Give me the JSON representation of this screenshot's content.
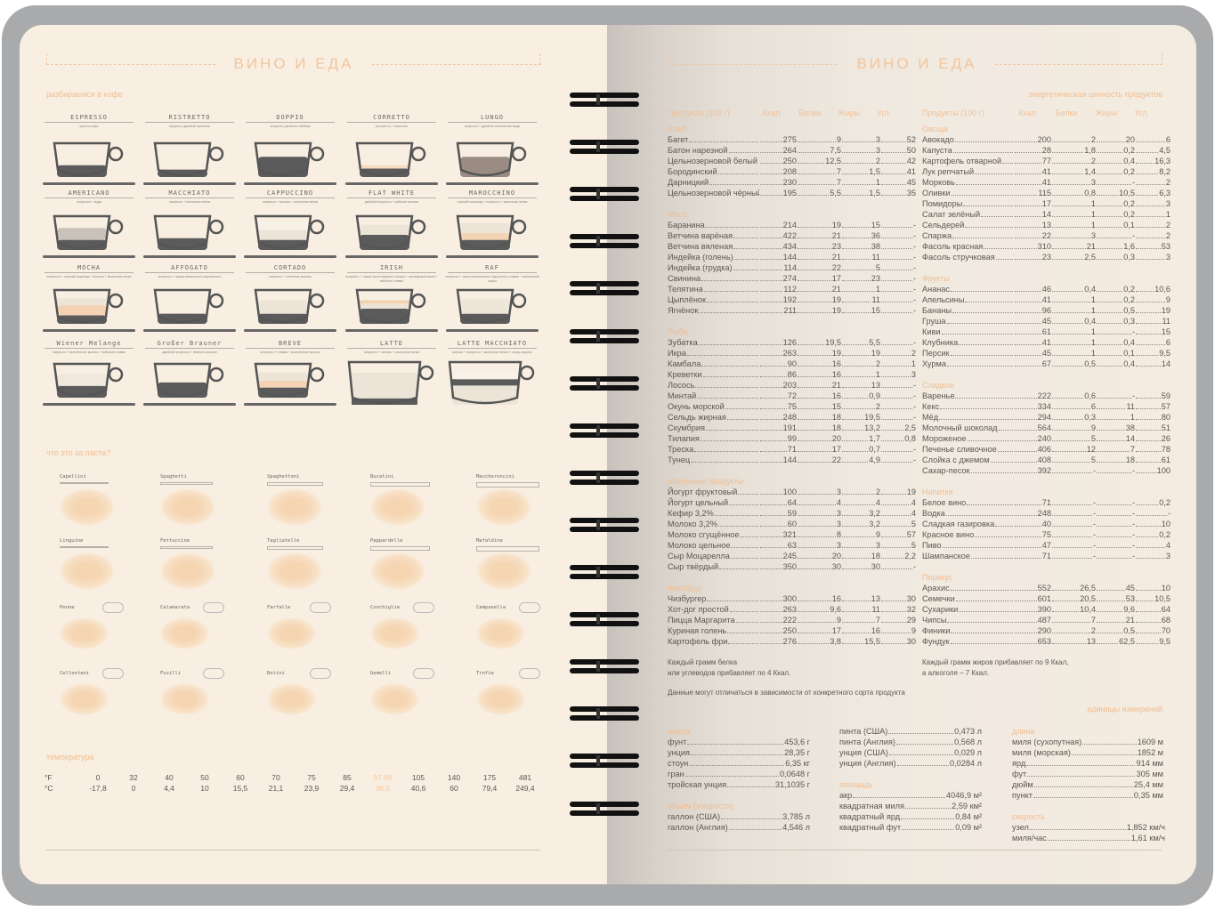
{
  "header": {
    "left_title": "ВИНО И ЕДА",
    "right_title": "ВИНО И ЕДА"
  },
  "coffee": {
    "title": "разбираемся в кофе",
    "cups": [
      {
        "name": "ESPRESSO",
        "desc": "просто кофе",
        "layers": [
          [
            "#5b5b5b",
            0.35
          ]
        ]
      },
      {
        "name": "RISTRETTO",
        "desc": "эспрессо двойной крепости",
        "layers": [
          [
            "#5b5b5b",
            0.22
          ]
        ]
      },
      {
        "name": "DOPPIO",
        "desc": "эспрессо двойного объёма",
        "layers": [
          [
            "#5b5b5b",
            0.6
          ]
        ]
      },
      {
        "name": "CORRETTO",
        "desc": "ристретто + алкоголь",
        "layers": [
          [
            "#5b5b5b",
            0.25
          ],
          [
            "#f5dcc0",
            0.1
          ]
        ]
      },
      {
        "name": "LUNGO",
        "desc": "эспрессо + двойное количество воды",
        "layers": [
          [
            "#9a8c82",
            0.6
          ]
        ]
      },
      {
        "name": "AMERICANO",
        "desc": "эспрессо + вода",
        "layers": [
          [
            "#5b5b5b",
            0.3
          ],
          [
            "#c9c2ba",
            0.35
          ]
        ]
      },
      {
        "name": "MACCHIATO",
        "desc": "эспрессо + молочная пенка",
        "layers": [
          [
            "#5b5b5b",
            0.35
          ]
        ]
      },
      {
        "name": "CAPPUCCINO",
        "desc": "эспрессо + молоко + молочная пенка",
        "layers": [
          [
            "#5b5b5b",
            0.3
          ],
          [
            "#ede4d8",
            0.3
          ],
          [
            "#f8f1e7",
            0.25
          ]
        ]
      },
      {
        "name": "FLAT WHITE",
        "desc": "двойной эспрессо + взбитое молоко",
        "layers": [
          [
            "#5b5b5b",
            0.45
          ],
          [
            "#ede4d8",
            0.3
          ]
        ]
      },
      {
        "name": "MAROCCHINO",
        "desc": "горячий шоколад + эспрессо + молочная пенка",
        "layers": [
          [
            "#5b5b5b",
            0.3
          ],
          [
            "#f3d3b3",
            0.2
          ],
          [
            "#ede4d8",
            0.3
          ]
        ]
      },
      {
        "name": "MOCHA",
        "desc": "эспрессо + горячий шоколад + молоко + молочная пенка",
        "layers": [
          [
            "#5b5b5b",
            0.25
          ],
          [
            "#f3d3b3",
            0.3
          ],
          [
            "#ede4d8",
            0.2
          ]
        ]
      },
      {
        "name": "AFFOGATO",
        "desc": "эспрессо + шарик ванильного мороженого",
        "layers": [
          [
            "#5b5b5b",
            0.3
          ]
        ]
      },
      {
        "name": "CORTADO",
        "desc": "эспрессо + топлёное молоко",
        "layers": [
          [
            "#5b5b5b",
            0.3
          ],
          [
            "#ede4d8",
            0.4
          ]
        ]
      },
      {
        "name": "IRISH",
        "desc": "эспрессо + ложка тростникового сахара + ирландский виски + взбитые сливки",
        "layers": [
          [
            "#5b5b5b",
            0.45
          ],
          [
            "#ede4d8",
            0.15
          ],
          [
            "#f3d3b3",
            0.1
          ]
        ]
      },
      {
        "name": "RAF",
        "desc": "эспрессо + смесь вспененных подогретых сливок + ванильный сироп",
        "layers": [
          [
            "#5b5b5b",
            0.3
          ],
          [
            "#efe6da",
            0.45
          ]
        ]
      },
      {
        "name": "Wiener Melange",
        "desc": "эспрессо + вспененное молоко + взбитые сливки",
        "layers": [
          [
            "#5b5b5b",
            0.35
          ],
          [
            "#f0e8dd",
            0.35
          ]
        ]
      },
      {
        "name": "Großer Brauner",
        "desc": "двойной эспрессо + немного молока",
        "layers": [
          [
            "#5b5b5b",
            0.45
          ]
        ]
      },
      {
        "name": "BREVE",
        "desc": "эспрессо + сливки + вспененное молоко",
        "layers": [
          [
            "#5b5b5b",
            0.3
          ],
          [
            "#f3d3b3",
            0.2
          ],
          [
            "#ede4d8",
            0.25
          ]
        ]
      },
      {
        "name": "LATTE",
        "desc": "эспрессо + молоко + молочная пенка",
        "layers": [
          [
            "#5b5b5b",
            0.15
          ],
          [
            "#ede4d8",
            0.6
          ]
        ]
      },
      {
        "name": "LATTE MACCHIATO",
        "desc": "молоко + эспрессо + молочная пенка + сахар-сиропы",
        "layers": [
          [
            "#ede4d8",
            0.45
          ],
          [
            "#5b5b5b",
            0.15
          ],
          [
            "#f8f1e7",
            0.2
          ]
        ]
      }
    ]
  },
  "pasta": {
    "title": "что это за паста?",
    "items": [
      "Capellini",
      "Spaghetti",
      "Spaghettoni",
      "Bucatini",
      "Maccheroncini",
      "Linguine",
      "Fettuccine",
      "Tagliatelle",
      "Pappardelle",
      "Mafaldine",
      "Penne",
      "Calamarata",
      "Farfalle",
      "Conchiglie",
      "Campanella",
      "Cellentani",
      "Fusilli",
      "Rotini",
      "Gemelli",
      "Trofie"
    ]
  },
  "temperature": {
    "title": "температура",
    "f_label": "°F",
    "c_label": "°C",
    "f": [
      "0",
      "32",
      "40",
      "50",
      "60",
      "70",
      "75",
      "85",
      "97,88",
      "105",
      "140",
      "175",
      "481"
    ],
    "c": [
      "-17,8",
      "0",
      "4,4",
      "10",
      "15,5",
      "21,1",
      "23,9",
      "29,4",
      "36,6",
      "40,6",
      "60",
      "79,4",
      "249,4"
    ],
    "highlight_index": 8,
    "highlight_color": "#f5c9a0"
  },
  "energy": {
    "title": "энергетическая ценность продуктов",
    "columns": [
      "Продукты (100 г)",
      "Ккал",
      "Белки",
      "Жиры",
      "Угл."
    ],
    "left": [
      {
        "name": "Хлеб",
        "rows": [
          [
            "Багет",
            "275",
            "9",
            "3",
            "52"
          ],
          [
            "Батон нарезной",
            "264",
            "7,5",
            "3",
            "50"
          ],
          [
            "Цельнозерновой белый",
            "250",
            "12,5",
            "2",
            "42"
          ],
          [
            "Бородинский",
            "208",
            "7",
            "1,5",
            "41"
          ],
          [
            "Дарницкий",
            "230",
            "7",
            "1",
            "45"
          ],
          [
            "Цельнозерновой чёрный",
            "195",
            "5,5",
            "1,5",
            "35"
          ]
        ]
      },
      {
        "name": "Мясо",
        "rows": [
          [
            "Баранина",
            "214",
            "19",
            "15",
            "-"
          ],
          [
            "Ветчина варёная",
            "422",
            "21",
            "36",
            "-"
          ],
          [
            "Ветчина вяленая",
            "434",
            "23",
            "38",
            "-"
          ],
          [
            "Индейка (голень)",
            "144",
            "21",
            "11",
            "-"
          ],
          [
            "Индейка (грудка)",
            "114",
            "22",
            "5",
            "-"
          ],
          [
            "Свинина",
            "274",
            "17",
            "23",
            "-"
          ],
          [
            "Телятина",
            "112",
            "21",
            "1",
            "-"
          ],
          [
            "Цыплёнок",
            "192",
            "19",
            "11",
            "-"
          ],
          [
            "Ягнёнок",
            "211",
            "19",
            "15",
            "-"
          ]
        ]
      },
      {
        "name": "Рыба",
        "rows": [
          [
            "Зубатка",
            "126",
            "19,5",
            "5,5",
            "-"
          ],
          [
            "Икра",
            "263",
            "19",
            "19",
            "2"
          ],
          [
            "Камбала",
            "90",
            "16",
            "2",
            "1"
          ],
          [
            "Креветки",
            "86",
            "16",
            "1",
            "3"
          ],
          [
            "Лосось",
            "203",
            "21",
            "13",
            "-"
          ],
          [
            "Минтай",
            "72",
            "16",
            "0,9",
            "-"
          ],
          [
            "Окунь морской",
            "75",
            "15",
            "2",
            "-"
          ],
          [
            "Сельдь жирная",
            "248",
            "18",
            "19,5",
            "-"
          ],
          [
            "Скумбрия",
            "191",
            "18",
            "13,2",
            "2,5"
          ],
          [
            "Тилапия",
            "99",
            "20",
            "1,7",
            "0,8"
          ],
          [
            "Треска",
            "71",
            "17",
            "0,7",
            "-"
          ],
          [
            "Тунец",
            "144",
            "22",
            "4,9",
            "-"
          ]
        ]
      },
      {
        "name": "Молочные продукты",
        "rows": [
          [
            "Йогурт фруктовый",
            "100",
            "3",
            "2",
            "19"
          ],
          [
            "Йогурт цельный",
            "64",
            "4",
            "4",
            "4"
          ],
          [
            "Кефир 3,2%",
            "59",
            "3",
            "3,2",
            "4"
          ],
          [
            "Молоко 3,2%",
            "60",
            "3",
            "3,2",
            "5"
          ],
          [
            "Молоко сгущённое",
            "321",
            "8",
            "9",
            "57"
          ],
          [
            "Молоко цельное",
            "63",
            "3",
            "3",
            "5"
          ],
          [
            "Сыр Моцарелла",
            "245",
            "20",
            "18",
            "2,2"
          ],
          [
            "Сыр твёрдый",
            "350",
            "30",
            "30",
            "-"
          ]
        ]
      },
      {
        "name": "Фастфуд",
        "rows": [
          [
            "Чизбургер",
            "300",
            "16",
            "13",
            "30"
          ],
          [
            "Хот-дог простой",
            "263",
            "9,6",
            "11",
            "32"
          ],
          [
            "Пицца Маргарита",
            "222",
            "9",
            "7",
            "29"
          ],
          [
            "Куриная голень",
            "250",
            "17",
            "16",
            "9"
          ],
          [
            "Картофель фри",
            "276",
            "3,8",
            "15,5",
            "30"
          ]
        ]
      }
    ],
    "right": [
      {
        "name": "Овощи",
        "rows": [
          [
            "Авокадо",
            "200",
            "2",
            "20",
            "6"
          ],
          [
            "Капуста",
            "28",
            "1,8",
            "0,2",
            "4,5"
          ],
          [
            "Картофель отварной",
            "77",
            "2",
            "0,4",
            "16,3"
          ],
          [
            "Лук репчатый",
            "41",
            "1,4",
            "0,2",
            "8,2"
          ],
          [
            "Морковь",
            "41",
            "3",
            "-",
            "2"
          ],
          [
            "Оливки",
            "115",
            "0,8",
            "10,5",
            "6,3"
          ],
          [
            "Помидоры",
            "17",
            "1",
            "0,2",
            "3"
          ],
          [
            "Салат зелёный",
            "14",
            "1",
            "0,2",
            "1"
          ],
          [
            "Сельдерей",
            "13",
            "1",
            "0,1",
            "2"
          ],
          [
            "Спаржа",
            "22",
            "3",
            "-",
            "2"
          ],
          [
            "Фасоль красная",
            "310",
            "21",
            "1,6",
            "53"
          ],
          [
            "Фасоль стручковая",
            "23",
            "2,5",
            "0,3",
            "3"
          ]
        ]
      },
      {
        "name": "Фрукты",
        "rows": [
          [
            "Ананас",
            "46",
            "0,4",
            "0,2",
            "10,6"
          ],
          [
            "Апельсины",
            "41",
            "1",
            "0,2",
            "9"
          ],
          [
            "Бананы",
            "96",
            "1",
            "0,5",
            "19"
          ],
          [
            "Груша",
            "45",
            "0,4",
            "0,3",
            "11"
          ],
          [
            "Киви",
            "61",
            "1",
            "-",
            "15"
          ],
          [
            "Клубника",
            "41",
            "1",
            "0,4",
            "6"
          ],
          [
            "Персик",
            "45",
            "1",
            "0,1",
            "9,5"
          ],
          [
            "Хурма",
            "67",
            "0,5",
            "0,4",
            "14"
          ]
        ]
      },
      {
        "name": "Сладкое",
        "rows": [
          [
            "Варенье",
            "222",
            "0,6",
            "-",
            "59"
          ],
          [
            "Кекс",
            "334",
            "6",
            "11",
            "57"
          ],
          [
            "Мёд",
            "294",
            "0,3",
            "1",
            "80"
          ],
          [
            "Молочный шоколад",
            "564",
            "9",
            "38",
            "51"
          ],
          [
            "Мороженое",
            "240",
            "5",
            "14",
            "26"
          ],
          [
            "Печенье сливочное",
            "406",
            "12",
            "7",
            "78"
          ],
          [
            "Слойка с джемом",
            "408",
            "5",
            "18",
            "61"
          ],
          [
            "Сахар-песок",
            "392",
            "-",
            "-",
            "100"
          ]
        ]
      },
      {
        "name": "Напитки",
        "rows": [
          [
            "Белое вино",
            "71",
            "-",
            "-",
            "0,2"
          ],
          [
            "Водка",
            "248",
            "-",
            "-",
            "-"
          ],
          [
            "Сладкая газировка",
            "40",
            "-",
            "-",
            "10"
          ],
          [
            "Красное вино",
            "75",
            "-",
            "-",
            "0,2"
          ],
          [
            "Пиво",
            "47",
            "-",
            "-",
            "4"
          ],
          [
            "Шампанское",
            "71",
            "-",
            "-",
            "3"
          ]
        ]
      },
      {
        "name": "Перекус",
        "rows": [
          [
            "Арахис",
            "552",
            "26,5",
            "45",
            "10"
          ],
          [
            "Семечки",
            "601",
            "20,5",
            "53",
            "10,5"
          ],
          [
            "Сухарики",
            "390",
            "10,4",
            "9,6",
            "64"
          ],
          [
            "Чипсы",
            "487",
            "7",
            "21",
            "68"
          ],
          [
            "Финики",
            "290",
            "2",
            "0,5",
            "70"
          ],
          [
            "Фундук",
            "653",
            "13",
            "62,5",
            "9,5"
          ]
        ]
      }
    ],
    "note_left_1": "Каждый грамм белка",
    "note_left_2": "или углеводов прибавляет по 4 Ккал.",
    "note_right_1": "Каждый грамм жиров прибавляет по 9 Ккал,",
    "note_right_2": "а алкоголя – 7 Ккал.",
    "note_bottom": "Данные могут отличаться в зависимости от конкретного сорта продукта"
  },
  "units": {
    "title": "единицы измерений",
    "groups": [
      {
        "name": "масса",
        "rows": [
          [
            "фунт",
            "453,6 г"
          ],
          [
            "унция",
            "28,35 г"
          ],
          [
            "стоун",
            "6,35 кг"
          ],
          [
            "гран",
            "0,0648 г"
          ],
          [
            "тройская унция",
            "31,1035 г"
          ]
        ]
      },
      {
        "name": "объём (жидкости)",
        "rows": [
          [
            "галлон (США)",
            "3,785 л"
          ],
          [
            "галлон (Англия)",
            "4,546 л"
          ]
        ]
      },
      {
        "name": "",
        "rows": [
          [
            "пинта (США)",
            "0,473 л"
          ],
          [
            "пинта (Англия)",
            "0,568 л"
          ],
          [
            "унция (США)",
            "0,029 л"
          ],
          [
            "унция (Англия)",
            "0,0284 л"
          ]
        ]
      },
      {
        "name": "площадь",
        "rows": [
          [
            "акр",
            "4046,9 м²"
          ],
          [
            "квадратная миля",
            "2,59 км²"
          ],
          [
            "квадратный ярд",
            "0,84 м²"
          ],
          [
            "квадратный фут",
            "0,09 м²"
          ]
        ]
      },
      {
        "name": "длина",
        "rows": [
          [
            "миля (сухопутная)",
            "1609 м"
          ],
          [
            "миля (морская)",
            "1852 м"
          ],
          [
            "ярд",
            "914 мм"
          ],
          [
            "фут",
            "305 мм"
          ],
          [
            "дюйм",
            "25,4 мм"
          ],
          [
            "пункт",
            "0,35 мм"
          ]
        ]
      },
      {
        "name": "скорость",
        "rows": [
          [
            "узел",
            "1,852 км/ч"
          ],
          [
            "миля/час",
            "1,61 км/ч"
          ]
        ]
      }
    ]
  },
  "colors": {
    "accent": "#f1be90",
    "text": "#5b5753",
    "page": "#f8efe2",
    "ring": "#111111"
  }
}
